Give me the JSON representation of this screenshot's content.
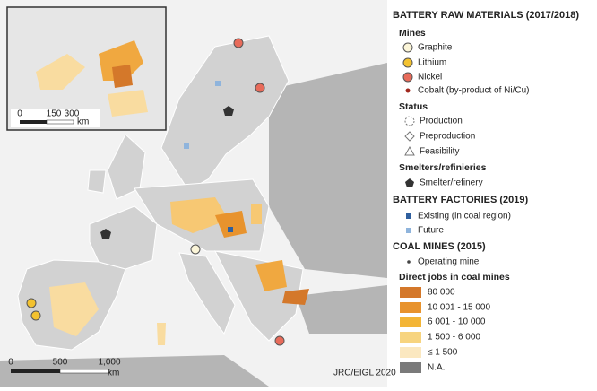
{
  "legend": {
    "title": "BATTERY RAW MATERIALS (2017/2018)",
    "mines": {
      "heading": "Mines",
      "items": [
        "Graphite",
        "Lithium",
        "Nickel",
        "Cobalt (by-product of Ni/Cu)"
      ]
    },
    "status": {
      "heading": "Status",
      "items": [
        "Production",
        "Preproduction",
        "Feasibility"
      ]
    },
    "smelters": {
      "heading": "Smelters/refinieries",
      "items": [
        "Smelter/refinery"
      ]
    },
    "factories": {
      "heading": "BATTERY FACTORIES (2019)",
      "items": [
        "Existing (in coal region)",
        "Future"
      ]
    },
    "coal": {
      "heading": "COAL MINES (2015)",
      "items": [
        "Operating mine"
      ],
      "jobs_heading": "Direct jobs in coal mines",
      "jobs_classes": [
        "80 000",
        "10 001 - 15 000",
        "6 001 - 10 000",
        "1 500 - 6 000",
        "≤ 1 500",
        "N.A."
      ]
    }
  },
  "scale_bar": {
    "labels": [
      "0",
      "500",
      "1,000"
    ],
    "unit": "km"
  },
  "inset_scale_bar": {
    "labels": [
      "0",
      "150",
      "300"
    ],
    "unit": "km"
  },
  "credit": "JRC/EIGL 2020"
}
